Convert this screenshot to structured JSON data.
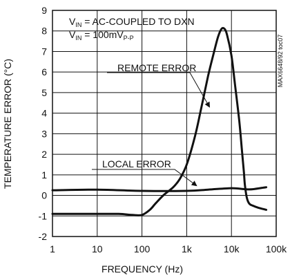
{
  "chart_data": {
    "type": "line",
    "x_scale": "log",
    "xlim": [
      1,
      100000
    ],
    "ylim": [
      -2,
      9
    ],
    "grid": true,
    "xlabel": "FREQUENCY (Hz)",
    "ylabel": "TEMPERATURE ERROR (°C)",
    "x_ticks": [
      1,
      10,
      100,
      1000,
      10000,
      100000
    ],
    "x_tick_labels": [
      "1",
      "10",
      "100",
      "1k",
      "10k",
      "100k"
    ],
    "y_ticks": [
      -2,
      -1,
      0,
      1,
      2,
      3,
      4,
      5,
      6,
      7,
      8,
      9
    ],
    "y_tick_labels": [
      "-2",
      "-1",
      "0",
      "1",
      "2",
      "3",
      "4",
      "5",
      "6",
      "7",
      "8",
      "9"
    ],
    "conditions": {
      "line1_main": "V",
      "line1_sub": "IN",
      "line1_rest": " = AC-COUPLED TO DXN",
      "line2_main": "V",
      "line2_sub": "IN",
      "line2_mid": " = 100mV",
      "line2_sub2": "P-P"
    },
    "side_label": "MAX6648/92 toc07",
    "series": [
      {
        "name": "REMOTE ERROR",
        "x": [
          1,
          3,
          10,
          30,
          60,
          100,
          150,
          200,
          300,
          500,
          700,
          1000,
          1500,
          2000,
          3000,
          4000,
          5000,
          6000,
          7000,
          8000,
          10000,
          12000,
          15000,
          17000,
          19000,
          20000,
          22000,
          25000,
          30000,
          40000,
          60000
        ],
        "y": [
          -0.9,
          -0.9,
          -0.9,
          -0.9,
          -0.95,
          -0.95,
          -0.7,
          -0.4,
          0.0,
          0.4,
          0.8,
          1.5,
          2.8,
          4.0,
          5.8,
          6.9,
          7.7,
          8.1,
          8.1,
          7.8,
          6.8,
          5.4,
          3.6,
          2.3,
          1.1,
          0.5,
          -0.1,
          -0.4,
          -0.5,
          -0.6,
          -0.7
        ]
      },
      {
        "name": "LOCAL ERROR",
        "x": [
          1,
          10,
          100,
          1000,
          3000,
          10000,
          20000,
          30000,
          60000
        ],
        "y": [
          0.25,
          0.28,
          0.22,
          0.22,
          0.28,
          0.35,
          0.3,
          0.3,
          0.4
        ]
      }
    ],
    "annotations": [
      {
        "text": "REMOTE ERROR",
        "series": 0
      },
      {
        "text": "LOCAL ERROR",
        "series": 1
      }
    ]
  }
}
